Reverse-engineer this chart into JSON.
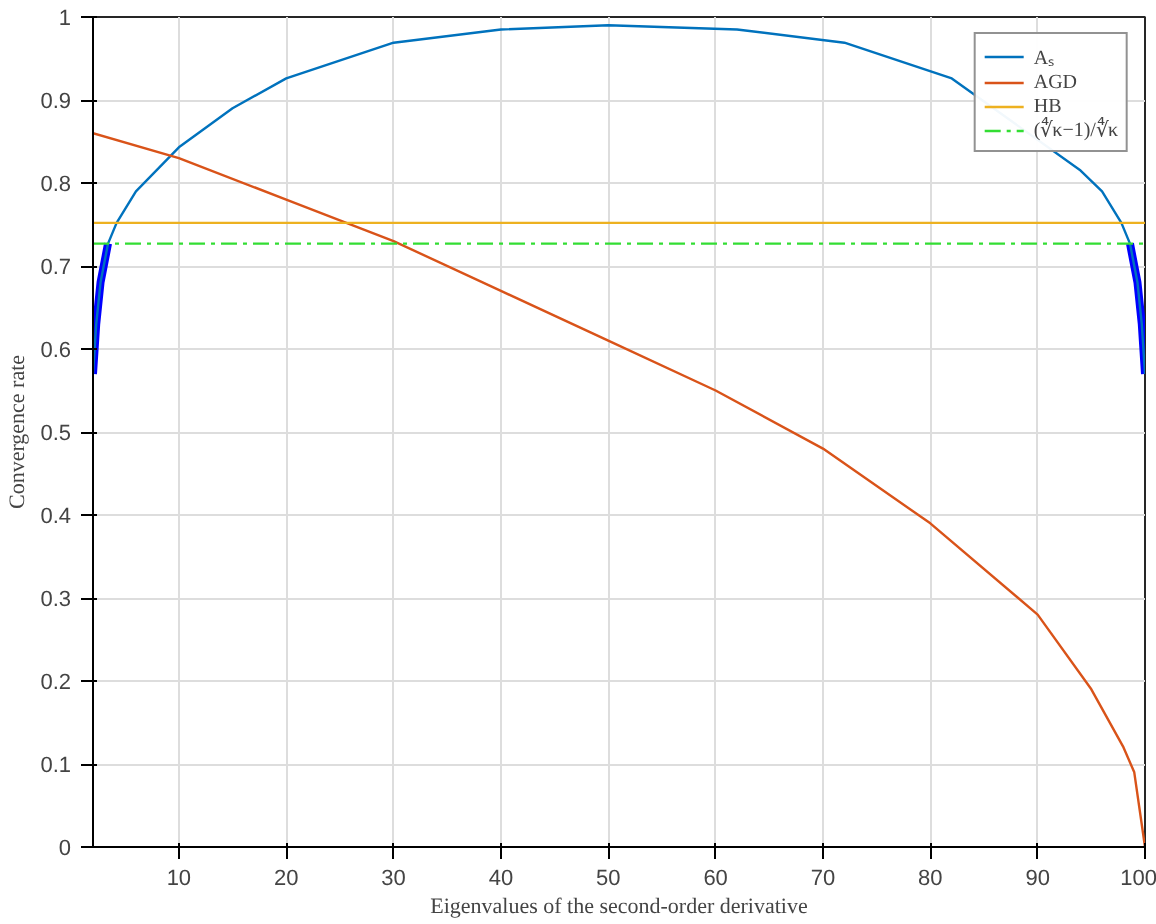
{
  "chart_data": {
    "type": "line",
    "xlabel": "Eigenvalues of the second-order derivative",
    "ylabel": "Convergence rate",
    "xlim": [
      2,
      100
    ],
    "ylim": [
      0,
      1
    ],
    "xticks": [
      10,
      20,
      30,
      40,
      50,
      60,
      70,
      80,
      90,
      100
    ],
    "yticks": [
      0,
      0.1,
      0.2,
      0.3,
      0.4,
      0.5,
      0.6,
      0.7,
      0.8,
      0.9,
      1
    ],
    "grid": true,
    "legend": "top right",
    "marker": "none",
    "series": [
      {
        "color": "#0000ff",
        "x": [
          2,
          2.3,
          2.7,
          3.4,
          50,
          98.6,
          99.3,
          99.7,
          100
        ],
        "values": [
          0.57,
          0.63,
          0.68,
          0.727,
          null,
          0.727,
          0.68,
          0.63,
          0.57
        ]
      },
      {
        "name": "Aₛ",
        "color": "#0072bd",
        "x": [
          2,
          2.3,
          2.7,
          3.4,
          4.2,
          6,
          10,
          15,
          20,
          30,
          40,
          50,
          62,
          72,
          82,
          94,
          96,
          97.8,
          98.6,
          99.3,
          99.7,
          100
        ],
        "values": [
          0.57,
          0.63,
          0.68,
          0.727,
          0.752,
          0.79,
          0.843,
          0.89,
          0.926,
          0.969,
          0.985,
          0.99,
          0.985,
          0.969,
          0.926,
          0.815,
          0.79,
          0.752,
          0.727,
          0.68,
          0.63,
          0.57
        ]
      },
      {
        "name": "AGD",
        "color": "#d95319",
        "x": [
          2,
          10,
          20,
          30,
          40,
          50,
          60,
          70,
          80,
          90,
          95,
          98,
          99,
          100
        ],
        "values": [
          0.86,
          0.83,
          0.78,
          0.73,
          0.67,
          0.61,
          0.55,
          0.48,
          0.39,
          0.28,
          0.19,
          0.12,
          0.09,
          0
        ]
      },
      {
        "name": "HB",
        "color": "#edb120",
        "x": [
          2,
          100
        ],
        "values": [
          0.752,
          0.752
        ]
      },
      {
        "name": "(∜κ−1)/∜κ",
        "color": "#33dd33",
        "line_style": "dashdot",
        "x": [
          2,
          100
        ],
        "values": [
          0.727,
          0.727
        ]
      }
    ]
  }
}
